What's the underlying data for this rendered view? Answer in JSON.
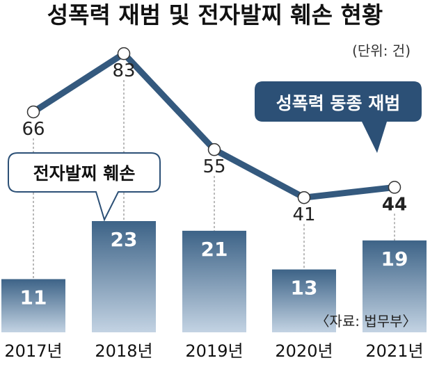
{
  "title": "성폭력 재범 및 전자발찌 훼손 현황",
  "unit": "(단위: 건)",
  "source": "〈자료: 법무부〉",
  "callouts": {
    "bars": "전자발찌 훼손",
    "line": "성폭력 동종 재범"
  },
  "colors": {
    "line": "#34597e",
    "callout_dark": "#2c5076",
    "bar_top": "#3d6387",
    "bar_bottom": "#c3d3e3",
    "grid": "#888888"
  },
  "chart_data": {
    "type": "bar",
    "categories": [
      "2017년",
      "2018년",
      "2019년",
      "2020년",
      "2021년"
    ],
    "series": [
      {
        "name": "전자발찌 훼손",
        "type": "bar",
        "values": [
          11,
          23,
          21,
          13,
          19
        ]
      },
      {
        "name": "성폭력 동종 재범",
        "type": "line",
        "values": [
          66,
          83,
          55,
          41,
          44
        ]
      }
    ],
    "title": "성폭력 재범 및 전자발찌 훼손 현황",
    "xlabel": "",
    "ylabel": "",
    "unit": "건",
    "grid": false,
    "highlight_last_line_label": true
  }
}
